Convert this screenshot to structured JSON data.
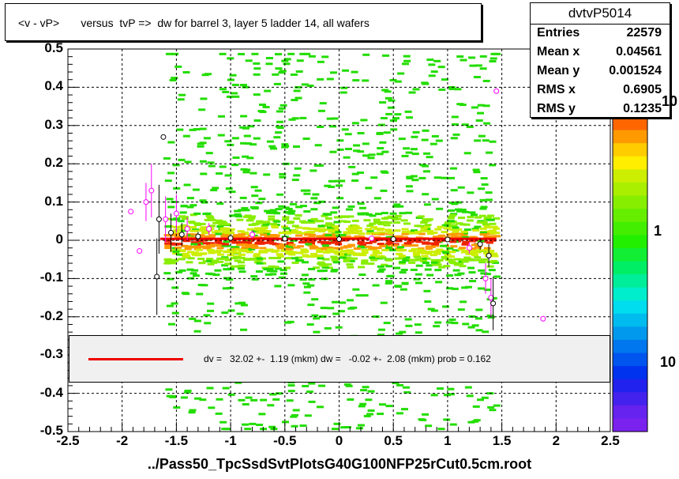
{
  "title": "<v - vP>       versus  tvP =>  dw for barrel 3, layer 5 ladder 14, all wafers",
  "stats": {
    "name": "dvtvP5014",
    "rows": [
      {
        "label": "Entries",
        "value": "22579"
      },
      {
        "label": "Mean x",
        "value": "0.04561"
      },
      {
        "label": "Mean y",
        "value": "0.001524"
      },
      {
        "label": "RMS x",
        "value": "0.6905"
      },
      {
        "label": "RMS y",
        "value": "0.1235"
      }
    ]
  },
  "fit_text": "dv =   32.02 +-  1.19 (mkm) dw =   -0.02 +-  2.08 (mkm) prob = 0.162",
  "palette_labels": [
    "10",
    "1",
    "10"
  ],
  "footer": "../Pass50_TpcSsdSvtPlotsG40G100NFP25rCut0.5cm.root",
  "colors": {
    "fit_line": "#ee0000",
    "profile_black": "#000000",
    "profile_magenta": "#ff00ff",
    "scatter_green": "#22dd00",
    "frame": "#000000"
  },
  "chart_data": {
    "type": "heatmap",
    "title": "<v - vP>       versus  tvP =>  dw for barrel 3, layer 5 ladder 14, all wafers",
    "xlim": [
      -2.5,
      2.5
    ],
    "ylim": [
      -0.5,
      0.5
    ],
    "x_ticks": [
      "-2.5",
      "-2",
      "-1.5",
      "-1",
      "-0.5",
      "0",
      "0.5",
      "1",
      "1.5",
      "2",
      "2.5"
    ],
    "y_ticks": [
      "0.5",
      "0.4",
      "0.3",
      "0.2",
      "0.1",
      "0",
      "-0.1",
      "-0.2",
      "-0.3",
      "-0.4",
      "-0.5"
    ],
    "grid": true,
    "fit_line": {
      "x": [
        -1.65,
        1.45
      ],
      "y": [
        0.004,
        0.004
      ]
    },
    "profile_black": [
      {
        "x": -1.62,
        "y": 0.27,
        "err": 0.0
      },
      {
        "x": -1.68,
        "y": -0.095,
        "err": 0.1
      },
      {
        "x": -1.66,
        "y": 0.055,
        "err": 0.09
      },
      {
        "x": -1.55,
        "y": 0.02,
        "err": 0.05
      },
      {
        "x": -1.45,
        "y": 0.015,
        "err": 0.03
      },
      {
        "x": -1.3,
        "y": 0.01,
        "err": 0.012
      },
      {
        "x": -1.0,
        "y": 0.006,
        "err": 0.006
      },
      {
        "x": -0.5,
        "y": 0.004,
        "err": 0.004
      },
      {
        "x": 0.0,
        "y": 0.003,
        "err": 0.004
      },
      {
        "x": 0.5,
        "y": 0.003,
        "err": 0.004
      },
      {
        "x": 1.0,
        "y": 0.002,
        "err": 0.006
      },
      {
        "x": 1.3,
        "y": -0.01,
        "err": 0.015
      },
      {
        "x": 1.38,
        "y": -0.04,
        "err": 0.03
      },
      {
        "x": 1.42,
        "y": -0.165,
        "err": 0.07
      }
    ],
    "profile_magenta": [
      {
        "x": -1.92,
        "y": 0.075,
        "err": 0.0
      },
      {
        "x": -1.84,
        "y": -0.028,
        "err": 0.0
      },
      {
        "x": -1.78,
        "y": 0.1,
        "err": 0.05
      },
      {
        "x": -1.73,
        "y": 0.13,
        "err": 0.07
      },
      {
        "x": -1.6,
        "y": 0.055,
        "err": 0.06
      },
      {
        "x": -1.5,
        "y": 0.07,
        "err": 0.05
      },
      {
        "x": -1.4,
        "y": 0.03,
        "err": 0.03
      },
      {
        "x": -1.2,
        "y": 0.03,
        "err": 0.015
      },
      {
        "x": -0.8,
        "y": 0.015,
        "err": 0.01
      },
      {
        "x": 0.3,
        "y": 0.005,
        "err": 0.006
      },
      {
        "x": 1.2,
        "y": -0.02,
        "err": 0.015
      },
      {
        "x": 1.35,
        "y": -0.1,
        "err": 0.04
      },
      {
        "x": 1.4,
        "y": -0.15,
        "err": 0.05
      },
      {
        "x": 1.45,
        "y": 0.39,
        "err": 0.0
      },
      {
        "x": 1.88,
        "y": -0.205,
        "err": 0.0
      }
    ]
  }
}
